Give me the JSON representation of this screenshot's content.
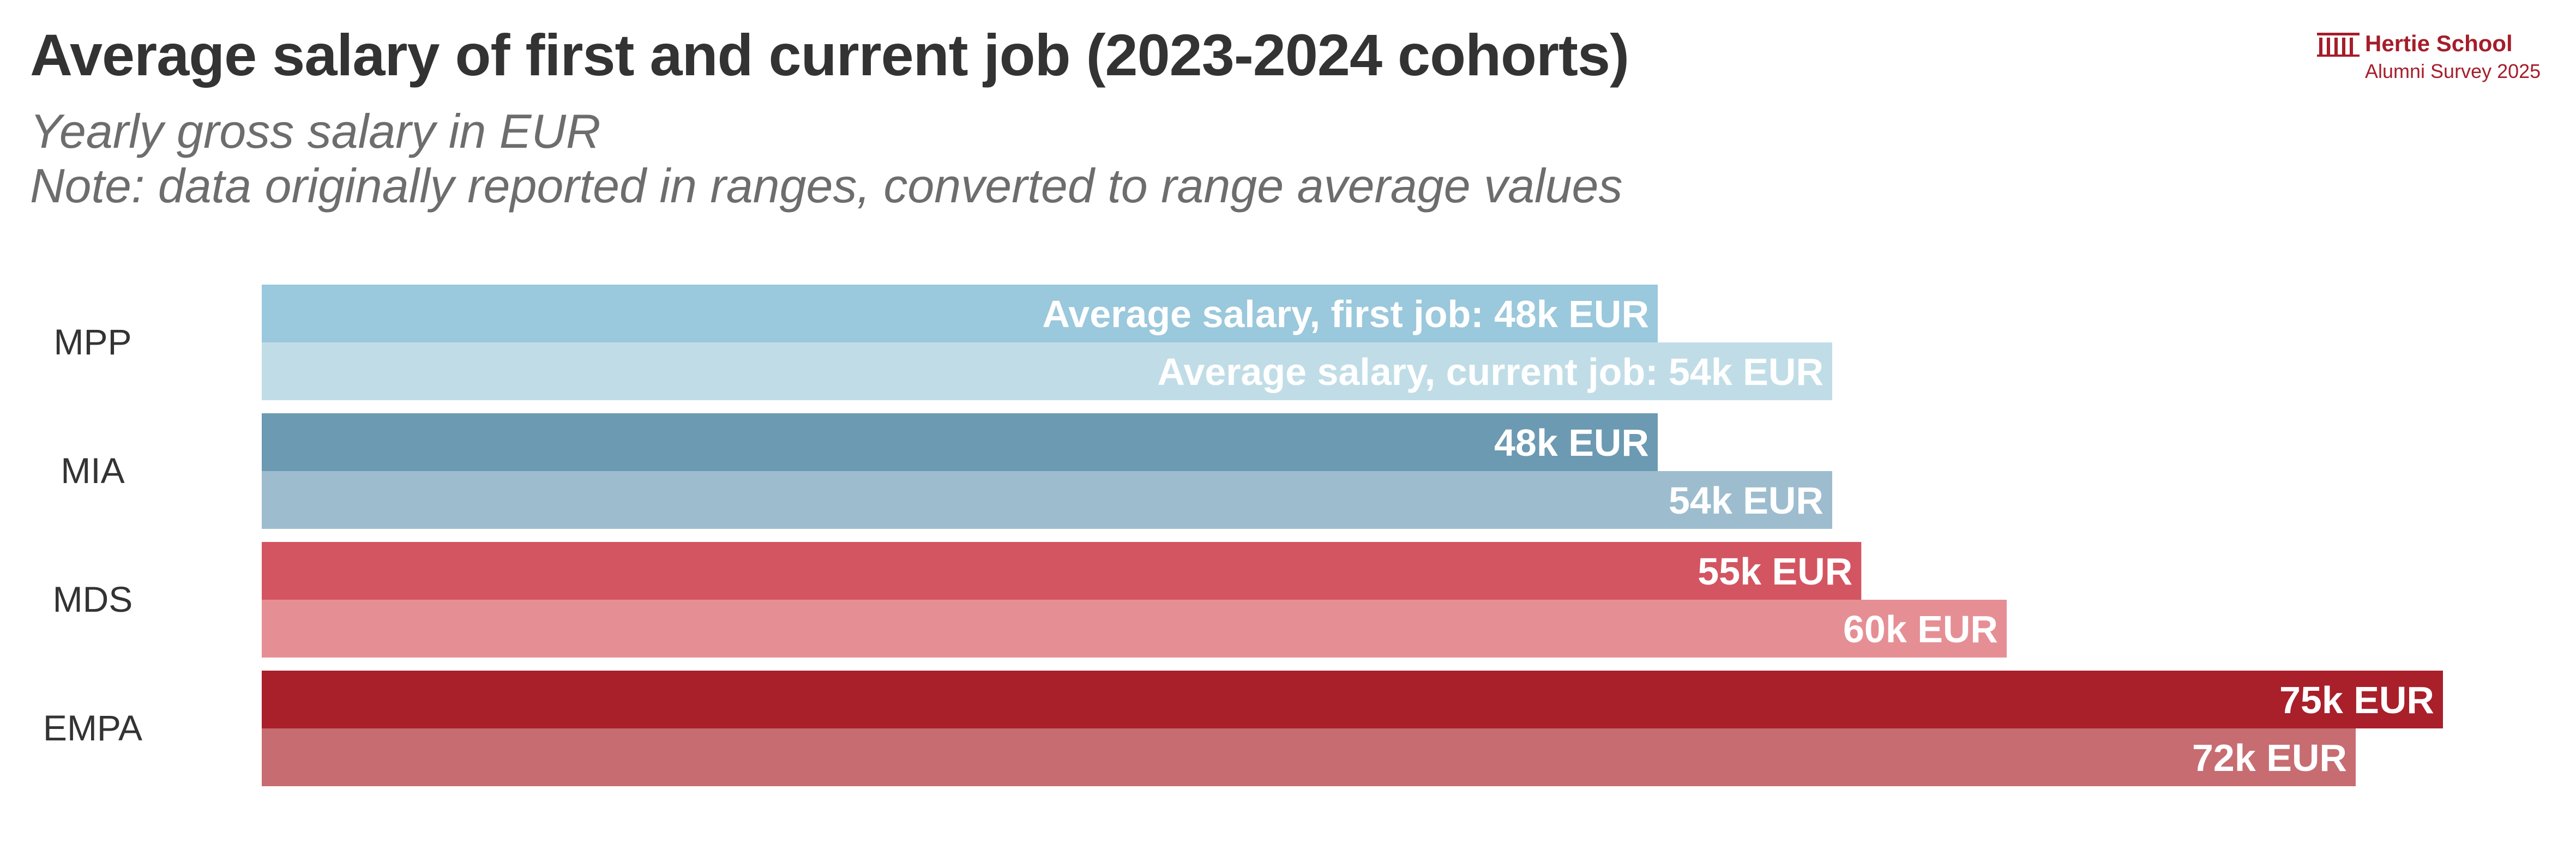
{
  "logo": {
    "name": "Hertie School",
    "subtitle": "Alumni Survey 2025",
    "color": "#a51d2a"
  },
  "chart_data": {
    "type": "bar",
    "orientation": "horizontal",
    "title": "Average salary of first and current job (2023-2024 cohorts)",
    "subtitle": [
      "Yearly gross salary in EUR",
      "Note: data originally reported in ranges, converted to range average values"
    ],
    "categories": [
      "MPP",
      "MIA",
      "MDS",
      "EMPA"
    ],
    "series": [
      {
        "key": "first",
        "values": [
          48,
          48,
          55,
          75
        ],
        "labels": [
          "Average salary, first job: 48k EUR",
          "48k EUR",
          "55k EUR",
          "75k EUR"
        ],
        "colors": [
          "#9ac8dc",
          "#6b9ab2",
          "#d35561",
          "#a91f2a"
        ]
      },
      {
        "key": "current",
        "values": [
          54,
          54,
          60,
          72
        ],
        "labels": [
          "Average salary, current job: 54k EUR",
          "54k EUR",
          "60k EUR",
          "72k EUR"
        ],
        "colors": [
          "#c0dde7",
          "#9dbdcf",
          "#e58f95",
          "#c76c71"
        ]
      }
    ],
    "xlim": [
      0,
      80
    ],
    "grid": false,
    "legend": "none"
  }
}
